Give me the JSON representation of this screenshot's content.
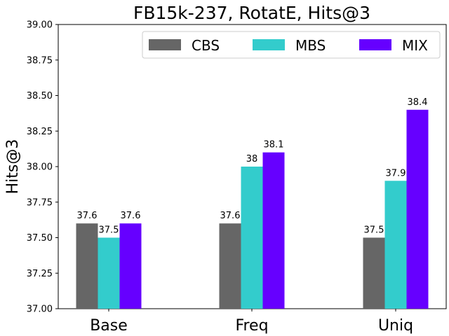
{
  "chart_data": {
    "type": "bar",
    "title": "FB15k-237, RotatE, Hits@3",
    "xlabel": "",
    "ylabel": "Hits@3",
    "ylim": [
      37.0,
      39.0
    ],
    "yticks": [
      "37.00",
      "37.25",
      "37.50",
      "37.75",
      "38.00",
      "38.25",
      "38.50",
      "38.75",
      "39.00"
    ],
    "categories": [
      "Base",
      "Freq",
      "Uniq"
    ],
    "series": [
      {
        "name": "CBS",
        "color": "#666666",
        "values": [
          37.6,
          37.6,
          37.5
        ],
        "labels": [
          "37.6",
          "37.6",
          "37.5"
        ]
      },
      {
        "name": "MBS",
        "color": "#33cccc",
        "values": [
          37.5,
          38.0,
          37.9
        ],
        "labels": [
          "37.5",
          "38",
          "37.9"
        ]
      },
      {
        "name": "MIX",
        "color": "#6600ff",
        "values": [
          37.6,
          38.1,
          38.4
        ],
        "labels": [
          "37.6",
          "38.1",
          "38.4"
        ]
      }
    ],
    "legend_position": "top-right",
    "grid": false
  }
}
